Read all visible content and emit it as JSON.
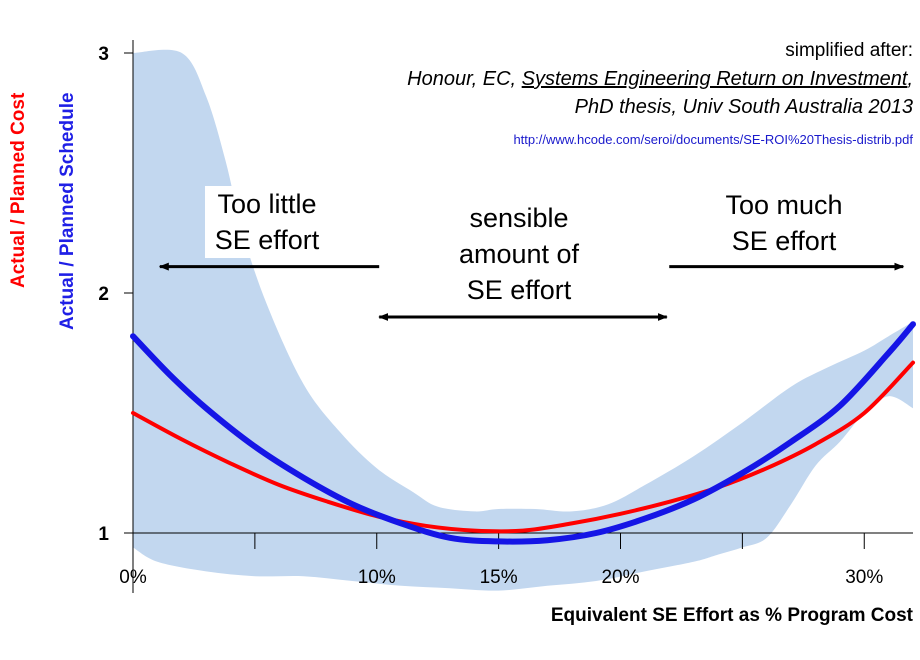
{
  "chart_data": {
    "type": "line",
    "xlabel": "Equivalent SE Effort as % Program Cost",
    "ylabels": [
      {
        "text": "Actual / Planned Cost",
        "color": "#ff0000"
      },
      {
        "text": "Actual / Planned Schedule",
        "color": "#1f1fe6"
      }
    ],
    "xlim": [
      0,
      32
    ],
    "ylim": [
      0.75,
      3.0
    ],
    "x_ticks": [
      {
        "value": 0,
        "label": "0%"
      },
      {
        "value": 5,
        "label": ""
      },
      {
        "value": 10,
        "label": "10%"
      },
      {
        "value": 15,
        "label": "15%"
      },
      {
        "value": 20,
        "label": "20%"
      },
      {
        "value": 25,
        "label": ""
      },
      {
        "value": 30,
        "label": "30%"
      }
    ],
    "y_ticks": [
      {
        "value": 1,
        "label": "1"
      },
      {
        "value": 2,
        "label": "2"
      },
      {
        "value": 3,
        "label": "3"
      }
    ],
    "series": [
      {
        "name": "Actual / Planned Schedule",
        "color": "#1515e6",
        "points": [
          [
            0,
            1.82
          ],
          [
            1.5,
            1.66
          ],
          [
            3,
            1.52
          ],
          [
            5,
            1.36
          ],
          [
            7,
            1.23
          ],
          [
            9,
            1.12
          ],
          [
            11,
            1.04
          ],
          [
            13,
            0.98
          ],
          [
            15,
            0.965
          ],
          [
            17,
            0.97
          ],
          [
            19,
            1.0
          ],
          [
            21,
            1.06
          ],
          [
            23,
            1.14
          ],
          [
            25,
            1.25
          ],
          [
            27,
            1.38
          ],
          [
            29,
            1.53
          ],
          [
            31,
            1.75
          ],
          [
            32,
            1.87
          ]
        ]
      },
      {
        "name": "Actual / Planned Cost",
        "color": "#ff0000",
        "points": [
          [
            0,
            1.5
          ],
          [
            2,
            1.39
          ],
          [
            4,
            1.29
          ],
          [
            6,
            1.2
          ],
          [
            8,
            1.13
          ],
          [
            10,
            1.07
          ],
          [
            12,
            1.03
          ],
          [
            14,
            1.01
          ],
          [
            16,
            1.01
          ],
          [
            18,
            1.04
          ],
          [
            20,
            1.08
          ],
          [
            22,
            1.13
          ],
          [
            24,
            1.19
          ],
          [
            26,
            1.27
          ],
          [
            28,
            1.37
          ],
          [
            30,
            1.5
          ],
          [
            32,
            1.71
          ]
        ]
      }
    ],
    "band": {
      "color": "#c2d7ef",
      "upper": [
        [
          0,
          3.0
        ],
        [
          2,
          3.0
        ],
        [
          3,
          2.82
        ],
        [
          3.8,
          2.55
        ],
        [
          4.5,
          2.25
        ],
        [
          5.5,
          1.95
        ],
        [
          7,
          1.62
        ],
        [
          8.5,
          1.42
        ],
        [
          10,
          1.27
        ],
        [
          11.5,
          1.17
        ],
        [
          12.5,
          1.11
        ],
        [
          14,
          1.09
        ],
        [
          15,
          1.1
        ],
        [
          16.5,
          1.1
        ],
        [
          18,
          1.09
        ],
        [
          19.5,
          1.12
        ],
        [
          21,
          1.2
        ],
        [
          23,
          1.32
        ],
        [
          25,
          1.46
        ],
        [
          27,
          1.61
        ],
        [
          28.5,
          1.69
        ],
        [
          30,
          1.76
        ],
        [
          31,
          1.82
        ],
        [
          32,
          1.88
        ]
      ],
      "lower": [
        [
          32,
          1.52
        ],
        [
          31,
          1.57
        ],
        [
          30,
          1.5
        ],
        [
          29,
          1.38
        ],
        [
          28,
          1.28
        ],
        [
          27,
          1.12
        ],
        [
          26,
          0.98
        ],
        [
          25,
          0.94
        ],
        [
          24,
          0.91
        ],
        [
          23,
          0.88
        ],
        [
          21,
          0.84
        ],
        [
          19,
          0.8
        ],
        [
          17,
          0.78
        ],
        [
          15,
          0.76
        ],
        [
          13,
          0.77
        ],
        [
          11,
          0.78
        ],
        [
          9,
          0.8
        ],
        [
          7,
          0.82
        ],
        [
          5,
          0.82
        ],
        [
          3,
          0.84
        ],
        [
          1,
          0.88
        ],
        [
          0,
          0.94
        ]
      ]
    },
    "annotations": {
      "left": {
        "line1": "Too little",
        "line2": "SE effort"
      },
      "center": {
        "line1": "sensible",
        "line2": "amount of",
        "line3": "SE effort"
      },
      "right": {
        "line1": "Too much",
        "line2": "SE effort"
      }
    },
    "arrows": [
      {
        "from": 10.1,
        "to": 1.1,
        "y": 2.11,
        "heads": "end"
      },
      {
        "from": 10.1,
        "to": 21.9,
        "y": 1.9,
        "heads": "both"
      },
      {
        "from": 22.0,
        "to": 31.6,
        "y": 2.11,
        "heads": "end"
      }
    ],
    "source": {
      "line1": "simplified after:",
      "line2_pre": "Honour, EC, ",
      "line2_title": "Systems Engineering Return on Investment",
      "line2_post": ",",
      "line3": "PhD thesis, Univ South Australia 2013",
      "url": "http://www.hcode.com/seroi/documents/SE-ROI%20Thesis-distrib.pdf"
    }
  }
}
